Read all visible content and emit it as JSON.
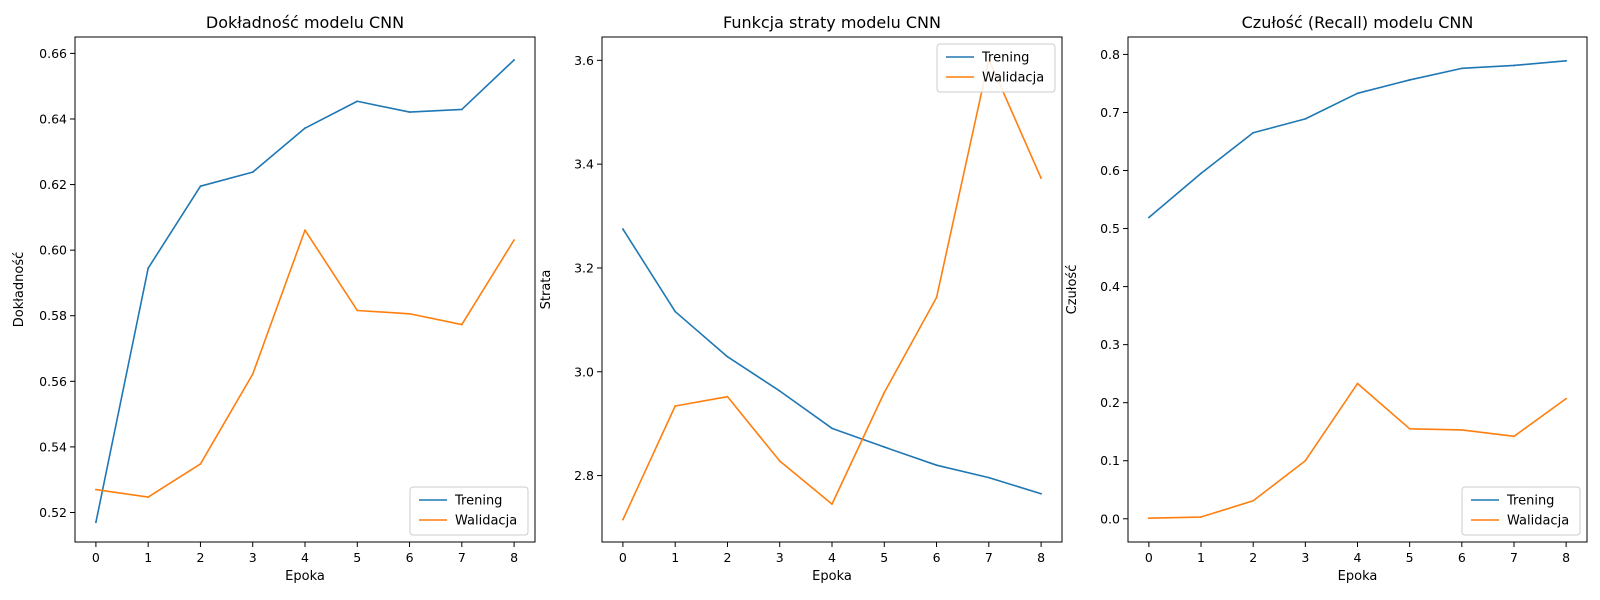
{
  "chart_data": [
    {
      "type": "line",
      "title": "Dokładność modelu CNN",
      "xlabel": "Epoka",
      "ylabel": "Dokładność",
      "x": [
        0,
        1,
        2,
        3,
        4,
        5,
        6,
        7,
        8
      ],
      "xlim": [
        -0.4,
        8.4
      ],
      "ylim": [
        0.511,
        0.665
      ],
      "yticks": [
        "0.52",
        "0.54",
        "0.56",
        "0.58",
        "0.60",
        "0.62",
        "0.64",
        "0.66"
      ],
      "legend_position": "lower-right",
      "grid": false,
      "series": [
        {
          "name": "Trening",
          "color": "#1f77b4",
          "values": [
            0.517,
            0.5945,
            0.6195,
            0.6238,
            0.6372,
            0.6454,
            0.6421,
            0.6429,
            0.658
          ]
        },
        {
          "name": "Walidacja",
          "color": "#ff7f0e",
          "values": [
            0.527,
            0.5247,
            0.5348,
            0.5622,
            0.6061,
            0.5816,
            0.5806,
            0.5773,
            0.6031
          ]
        }
      ]
    },
    {
      "type": "line",
      "title": "Funkcja straty modelu CNN",
      "xlabel": "Epoka",
      "ylabel": "Strata",
      "x": [
        0,
        1,
        2,
        3,
        4,
        5,
        6,
        7,
        8
      ],
      "xlim": [
        -0.4,
        8.4
      ],
      "ylim": [
        2.672,
        3.645
      ],
      "yticks": [
        "2.8",
        "3.0",
        "3.2",
        "3.4",
        "3.6"
      ],
      "legend_position": "upper-right",
      "grid": false,
      "series": [
        {
          "name": "Trening",
          "color": "#1f77b4",
          "values": [
            3.275,
            3.116,
            3.029,
            2.963,
            2.891,
            2.855,
            2.82,
            2.796,
            2.765
          ]
        },
        {
          "name": "Walidacja",
          "color": "#ff7f0e",
          "values": [
            2.715,
            2.934,
            2.952,
            2.828,
            2.745,
            2.96,
            3.143,
            3.602,
            3.373
          ]
        }
      ]
    },
    {
      "type": "line",
      "title": "Czułość (Recall) modelu CNN",
      "xlabel": "Epoka",
      "ylabel": "Czułość",
      "x": [
        0,
        1,
        2,
        3,
        4,
        5,
        6,
        7,
        8
      ],
      "xlim": [
        -0.4,
        8.4
      ],
      "ylim": [
        -0.04,
        0.83
      ],
      "yticks": [
        "0.0",
        "0.1",
        "0.2",
        "0.3",
        "0.4",
        "0.5",
        "0.6",
        "0.7",
        "0.8"
      ],
      "legend_position": "lower-right",
      "grid": false,
      "series": [
        {
          "name": "Trening",
          "color": "#1f77b4",
          "values": [
            0.519,
            0.595,
            0.665,
            0.689,
            0.733,
            0.756,
            0.776,
            0.781,
            0.789
          ]
        },
        {
          "name": "Walidacja",
          "color": "#ff7f0e",
          "values": [
            0.001,
            0.003,
            0.031,
            0.1,
            0.233,
            0.155,
            0.153,
            0.142,
            0.207
          ]
        }
      ]
    }
  ]
}
